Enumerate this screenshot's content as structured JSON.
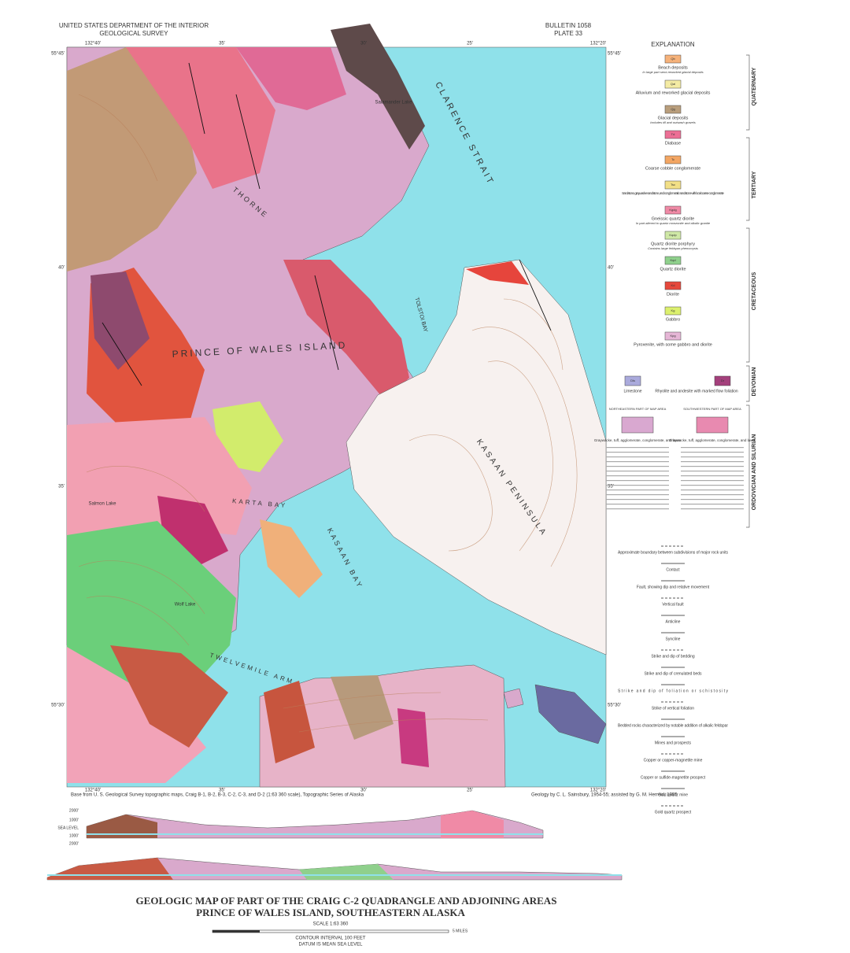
{
  "header": {
    "left": [
      "UNITED STATES DEPARTMENT OF THE INTERIOR",
      "GEOLOGICAL SURVEY"
    ],
    "right": [
      "BULLETIN 1058",
      "PLATE 33"
    ]
  },
  "map": {
    "longitudes": [
      "132°40'",
      "35'",
      "30'",
      "25'",
      "132°20'"
    ],
    "latitudes": [
      "55°45'",
      "40'",
      "35'",
      "55°30'"
    ],
    "places": [
      "CLARENCE STRAIT",
      "PRINCE OF WALES ISLAND",
      "THORNE",
      "TOLSTOI BAY",
      "KARTA BAY",
      "KASAAN BAY",
      "KASAAN PENINSULA",
      "TWELVEMILE ARM",
      "Salmon Lake",
      "Salamander Lake",
      "Wolf Lake"
    ]
  },
  "explanation": {
    "title": "EXPLANATION",
    "ages": [
      "QUATERNARY",
      "TERTIARY",
      "CRETACEOUS",
      "DEVONIAN",
      "ORDOVICIAN AND SILURIAN"
    ],
    "units": [
      {
        "code": "Qb",
        "label": "Beach deposits",
        "note": "In large part semi-reworked glacial deposits",
        "color": "#f6b27a"
      },
      {
        "code": "Qal",
        "label": "Alluvium and reworked glacial deposits",
        "color": "#f4eba4"
      },
      {
        "code": "Qg",
        "label": "Glacial deposits",
        "note": "Includes till and outwash gravels",
        "color": "#b99e7c"
      },
      {
        "code": "Td",
        "label": "Diabase",
        "color": "#ec6f95"
      },
      {
        "code": "Tc",
        "label": "Coarse cobble conglomerate",
        "color": "#f3a663"
      },
      {
        "code": "Tsc",
        "label": "Sandstone, graywacke sandstone, and conglomeratic sandstone with local coarse conglomerate",
        "color": "#f2df86"
      },
      {
        "code": "Kgdg",
        "label": "Gneissic quartz diorite",
        "note": "In part altered to quartz monzonite and alkalic granite",
        "color": "#f08aa6"
      },
      {
        "code": "Kqdp",
        "label": "Quartz diorite porphyry",
        "note": "Contains large feldspar phenocrysts",
        "color": "#cfe8a6"
      },
      {
        "code": "Kqd",
        "label": "Quartz diorite",
        "color": "#8fd08c"
      },
      {
        "code": "Kd",
        "label": "Diorite",
        "color": "#e6483c"
      },
      {
        "code": "Kg",
        "label": "Gabbro",
        "color": "#dcf06e"
      },
      {
        "code": "Kpg",
        "label": "Pyroxenite, with some gabbro and diorite",
        "color": "#e6b6d6"
      }
    ],
    "devonian": [
      {
        "code": "Dls",
        "label": "Limestone",
        "color": "#aaaadc"
      },
      {
        "code": "Dr",
        "label": "Rhyolite and andesite with marked flow foliation",
        "color": "#a4407c"
      }
    ],
    "silurian": {
      "areas": [
        "NORTHEASTERN PART OF MAP AREA",
        "SOUTHWESTERN PART OF MAP AREA"
      ],
      "label": "Graywacke, tuff, agglomerate, conglomerate, and lavas",
      "colors": [
        "#d9a8d0",
        "#e88ab0"
      ]
    },
    "symbols": [
      "Approximate boundary between subdivisions of major rock units",
      "Contact",
      "Fault, showing dip and relative movement",
      "Vertical fault",
      "Anticline",
      "Syncline",
      "Strike and dip of bedding",
      "Strike and dip of crenulated beds",
      "Strike and dip of foliation or schistosity",
      "Strike of vertical foliation",
      "Bedded rocks characterized by notable addition of alkalic feldspar",
      "Mines and prospects",
      "Copper or copper-magnetite mine",
      "Copper or sulfide-magnetite prospect",
      "Gold quartz mine",
      "Gold quartz prospect"
    ]
  },
  "footer": {
    "base": "Base from U. S. Geological Survey topographic maps, Craig B-1, B-2, B-3, C-2, C-3, and D-2 (1:63 360 scale), Topographic Series of Alaska",
    "credit": "Geology by C. L. Sainsbury, 1954-55; assisted by G. M. Herreid, 1955",
    "title": [
      "GEOLOGIC MAP OF PART OF THE CRAIG C-2 QUADRANGLE AND ADJOINING AREAS",
      "PRINCE OF WALES ISLAND, SOUTHEASTERN ALASKA"
    ],
    "scale": "SCALE 1:63 360",
    "scale_unit": "5 MILES",
    "contour": "CONTOUR INTERVAL 100 FEET",
    "datum": "DATUM IS MEAN SEA LEVEL",
    "section_levels": [
      "2000'",
      "1000'",
      "SEA LEVEL",
      "1000'",
      "2000'"
    ]
  }
}
